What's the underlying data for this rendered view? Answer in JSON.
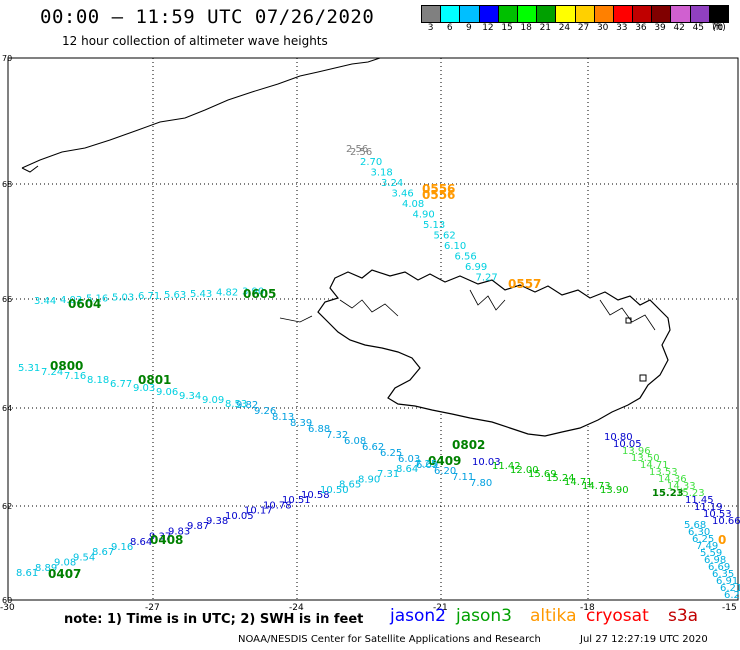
{
  "title": "00:00 – 11:59 UTC 07/26/2020",
  "subtitle": "12 hour collection of altimeter wave heights",
  "colorbar": {
    "colors": [
      "#808080",
      "#00ffff",
      "#00bfff",
      "#0000ff",
      "#00c000",
      "#00ff00",
      "#00a000",
      "#ffff00",
      "#ffd000",
      "#ff8000",
      "#ff0000",
      "#c00000",
      "#800000",
      "#d060d0",
      "#9040c0",
      "#000000"
    ],
    "labels": [
      "3",
      "6",
      "9",
      "12",
      "15",
      "18",
      "21",
      "24",
      "27",
      "30",
      "33",
      "36",
      "39",
      "42",
      "45",
      "70",
      "(ft)"
    ]
  },
  "axes": {
    "lat_labels": [
      "70",
      "68",
      "66",
      "64",
      "62",
      "60"
    ],
    "lon_labels": [
      "-30",
      "-27",
      "-24",
      "-21",
      "-18",
      "-15"
    ]
  },
  "tracks": [
    {
      "color": "#808080",
      "points": [
        [
          "2.56",
          0,
          0
        ]
      ]
    },
    {
      "color": "#00e0ff",
      "labels": [
        "2.70",
        "3.18",
        "3.24",
        "3.46",
        "4.08",
        "4.90",
        "5.13",
        "5.62",
        "6.10",
        "6.56",
        "6.99",
        "7.27"
      ]
    },
    {
      "color": "#ff9900",
      "labels": [
        "0556",
        "0557"
      ]
    }
  ],
  "time_labels": [
    "0604",
    "0800",
    "0801",
    "0605",
    "0802",
    "0409",
    "0408",
    "0407"
  ],
  "swh_labels": {
    "cyan_west_lat66": [
      "3.44",
      "4.03",
      "5.16",
      "5.03",
      "6.71",
      "5.63",
      "5.43",
      "4.82",
      "3.90"
    ],
    "cyan_west_lat65": [
      "5.31",
      "7.24",
      "7.16",
      "8.18",
      "6.77",
      "9.03",
      "9.06",
      "9.34",
      "9.09",
      "8.53"
    ],
    "blue_lat64": [
      "9.82",
      "9.26",
      "8.13",
      "8.39",
      "6.88",
      "7.32",
      "6.08",
      "6.62",
      "6.25",
      "6.03",
      "6.09",
      "6.20",
      "7.11",
      "7.80"
    ],
    "blue_lat63": [
      "10.03",
      "11.42",
      "12.00",
      "15.69",
      "15.24",
      "14.71",
      "14.73",
      "13.90"
    ],
    "cyan_lat62": [
      "8.61",
      "8.89",
      "9.08",
      "9.54",
      "8.67",
      "9.16",
      "8.64",
      "9.37",
      "9.83",
      "9.87",
      "9.38",
      "10.05",
      "10.17",
      "10.78",
      "10.51",
      "10.58",
      "10.50",
      "8.65",
      "8.90",
      "7.31",
      "8.64",
      "7.25"
    ],
    "green_east": [
      "10.80",
      "10.05",
      "13.96",
      "13.50",
      "14.71",
      "13.53",
      "14.36",
      "14.33",
      "15.23",
      "11.45",
      "11.19",
      "10.53",
      "10.66"
    ],
    "cyan_east": [
      "5.68",
      "6.30",
      "6.25",
      "7.49",
      "5.59",
      "6.98",
      "6.69",
      "6.35",
      "6.91",
      "6.21",
      "6.22"
    ]
  },
  "note": "note: 1) Time is in UTC; 2) SWH is in feet",
  "legend": [
    {
      "name": "jason2",
      "color": "#0000ff"
    },
    {
      "name": "jason3",
      "color": "#00a000"
    },
    {
      "name": "altika",
      "color": "#ff9900"
    },
    {
      "name": "cryosat",
      "color": "#ff0000"
    },
    {
      "name": "s3a",
      "color": "#c00000"
    }
  ],
  "credit": "NOAA/NESDIS Center for Satellite Applications and Research",
  "stamp": "Jul 27 12:27:19 UTC 2020"
}
